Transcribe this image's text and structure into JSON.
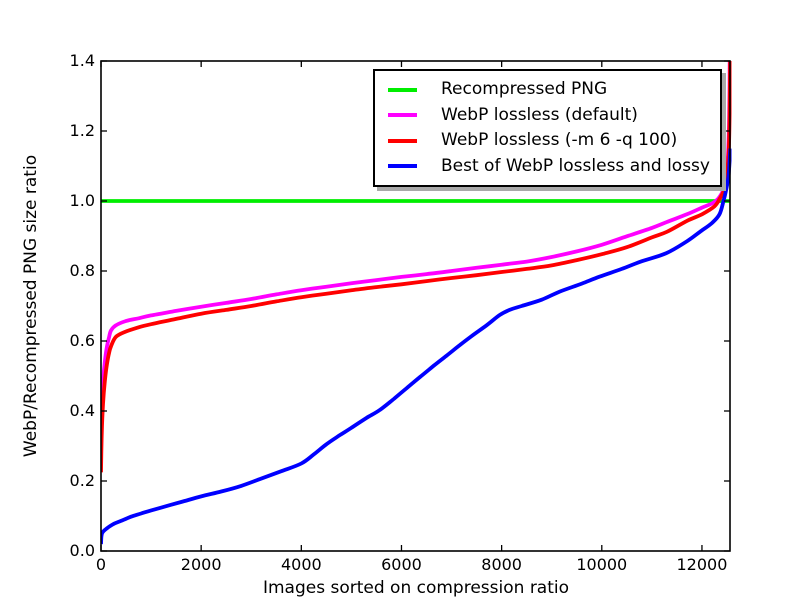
{
  "chart_data": {
    "type": "line",
    "title": "",
    "xlabel": "Images sorted on compression ratio",
    "ylabel": "WebP/Recompressed PNG size ratio",
    "xlim": [
      0,
      12560
    ],
    "ylim": [
      0,
      1.4
    ],
    "xticks": [
      0,
      2000,
      4000,
      6000,
      8000,
      10000,
      12000
    ],
    "yticks": [
      "0.0",
      "0.2",
      "0.4",
      "0.6",
      "0.8",
      "1.0",
      "1.2",
      "1.4"
    ],
    "grid": false,
    "legend_position": "upper right",
    "axis_color": "#000000",
    "background_color": "#ffffff",
    "line_width": 3.8,
    "series": [
      {
        "name": "Recompressed PNG",
        "color": "#00ee00",
        "points": [
          [
            0,
            1.0
          ],
          [
            12560,
            1.0
          ]
        ]
      },
      {
        "name": "WebP lossless (default)",
        "color": "#ff00ff",
        "points": [
          [
            0,
            0.27
          ],
          [
            15,
            0.4
          ],
          [
            40,
            0.48
          ],
          [
            80,
            0.545
          ],
          [
            120,
            0.585
          ],
          [
            160,
            0.61
          ],
          [
            200,
            0.63
          ],
          [
            300,
            0.645
          ],
          [
            500,
            0.657
          ],
          [
            750,
            0.665
          ],
          [
            1000,
            0.673
          ],
          [
            1500,
            0.686
          ],
          [
            2000,
            0.698
          ],
          [
            2500,
            0.709
          ],
          [
            3000,
            0.72
          ],
          [
            3500,
            0.733
          ],
          [
            4000,
            0.745
          ],
          [
            4500,
            0.755
          ],
          [
            5000,
            0.765
          ],
          [
            5500,
            0.774
          ],
          [
            6000,
            0.783
          ],
          [
            6500,
            0.791
          ],
          [
            7000,
            0.8
          ],
          [
            7500,
            0.809
          ],
          [
            8000,
            0.818
          ],
          [
            8500,
            0.827
          ],
          [
            9000,
            0.84
          ],
          [
            9500,
            0.856
          ],
          [
            10000,
            0.875
          ],
          [
            10500,
            0.899
          ],
          [
            11000,
            0.923
          ],
          [
            11300,
            0.94
          ],
          [
            11700,
            0.962
          ],
          [
            12000,
            0.981
          ],
          [
            12200,
            0.993
          ],
          [
            12320,
            1.006
          ],
          [
            12420,
            1.03
          ],
          [
            12480,
            1.07
          ],
          [
            12520,
            1.13
          ],
          [
            12545,
            1.25
          ],
          [
            12555,
            1.4
          ]
        ]
      },
      {
        "name": "WebP lossless (-m 6 -q 100)",
        "color": "#ff0000",
        "points": [
          [
            0,
            0.225
          ],
          [
            15,
            0.34
          ],
          [
            40,
            0.42
          ],
          [
            80,
            0.49
          ],
          [
            120,
            0.535
          ],
          [
            160,
            0.565
          ],
          [
            200,
            0.585
          ],
          [
            300,
            0.612
          ],
          [
            500,
            0.627
          ],
          [
            750,
            0.639
          ],
          [
            1000,
            0.648
          ],
          [
            1500,
            0.663
          ],
          [
            2000,
            0.678
          ],
          [
            2500,
            0.689
          ],
          [
            3000,
            0.7
          ],
          [
            3500,
            0.713
          ],
          [
            4000,
            0.725
          ],
          [
            4500,
            0.735
          ],
          [
            5000,
            0.745
          ],
          [
            5500,
            0.754
          ],
          [
            6000,
            0.762
          ],
          [
            6500,
            0.771
          ],
          [
            7000,
            0.78
          ],
          [
            7500,
            0.788
          ],
          [
            8000,
            0.797
          ],
          [
            8500,
            0.806
          ],
          [
            9000,
            0.816
          ],
          [
            9500,
            0.831
          ],
          [
            10000,
            0.848
          ],
          [
            10500,
            0.868
          ],
          [
            11000,
            0.896
          ],
          [
            11300,
            0.912
          ],
          [
            11700,
            0.943
          ],
          [
            12000,
            0.962
          ],
          [
            12250,
            0.985
          ],
          [
            12360,
            1.008
          ],
          [
            12450,
            1.035
          ],
          [
            12500,
            1.08
          ],
          [
            12535,
            1.14
          ],
          [
            12552,
            1.25
          ],
          [
            12562,
            1.4
          ]
        ]
      },
      {
        "name": "Best of WebP lossless and lossy",
        "color": "#0000ff",
        "points": [
          [
            0,
            0.02
          ],
          [
            20,
            0.05
          ],
          [
            120,
            0.065
          ],
          [
            250,
            0.077
          ],
          [
            400,
            0.086
          ],
          [
            600,
            0.098
          ],
          [
            800,
            0.107
          ],
          [
            1000,
            0.116
          ],
          [
            1300,
            0.128
          ],
          [
            1600,
            0.14
          ],
          [
            2000,
            0.156
          ],
          [
            2400,
            0.17
          ],
          [
            2800,
            0.186
          ],
          [
            3200,
            0.207
          ],
          [
            3600,
            0.228
          ],
          [
            4000,
            0.25
          ],
          [
            4250,
            0.276
          ],
          [
            4500,
            0.305
          ],
          [
            4770,
            0.331
          ],
          [
            5000,
            0.352
          ],
          [
            5300,
            0.38
          ],
          [
            5570,
            0.403
          ],
          [
            5850,
            0.435
          ],
          [
            6100,
            0.465
          ],
          [
            6370,
            0.497
          ],
          [
            6650,
            0.53
          ],
          [
            6900,
            0.558
          ],
          [
            7170,
            0.589
          ],
          [
            7400,
            0.614
          ],
          [
            7700,
            0.645
          ],
          [
            7960,
            0.674
          ],
          [
            8160,
            0.689
          ],
          [
            8400,
            0.7
          ],
          [
            8800,
            0.718
          ],
          [
            9160,
            0.741
          ],
          [
            9600,
            0.764
          ],
          [
            9960,
            0.784
          ],
          [
            10400,
            0.806
          ],
          [
            10800,
            0.828
          ],
          [
            11290,
            0.851
          ],
          [
            11700,
            0.885
          ],
          [
            11960,
            0.912
          ],
          [
            12200,
            0.937
          ],
          [
            12350,
            0.962
          ],
          [
            12430,
            1.0
          ],
          [
            12480,
            1.03
          ],
          [
            12530,
            1.07
          ],
          [
            12558,
            1.13
          ],
          [
            12565,
            1.15
          ]
        ]
      }
    ]
  }
}
